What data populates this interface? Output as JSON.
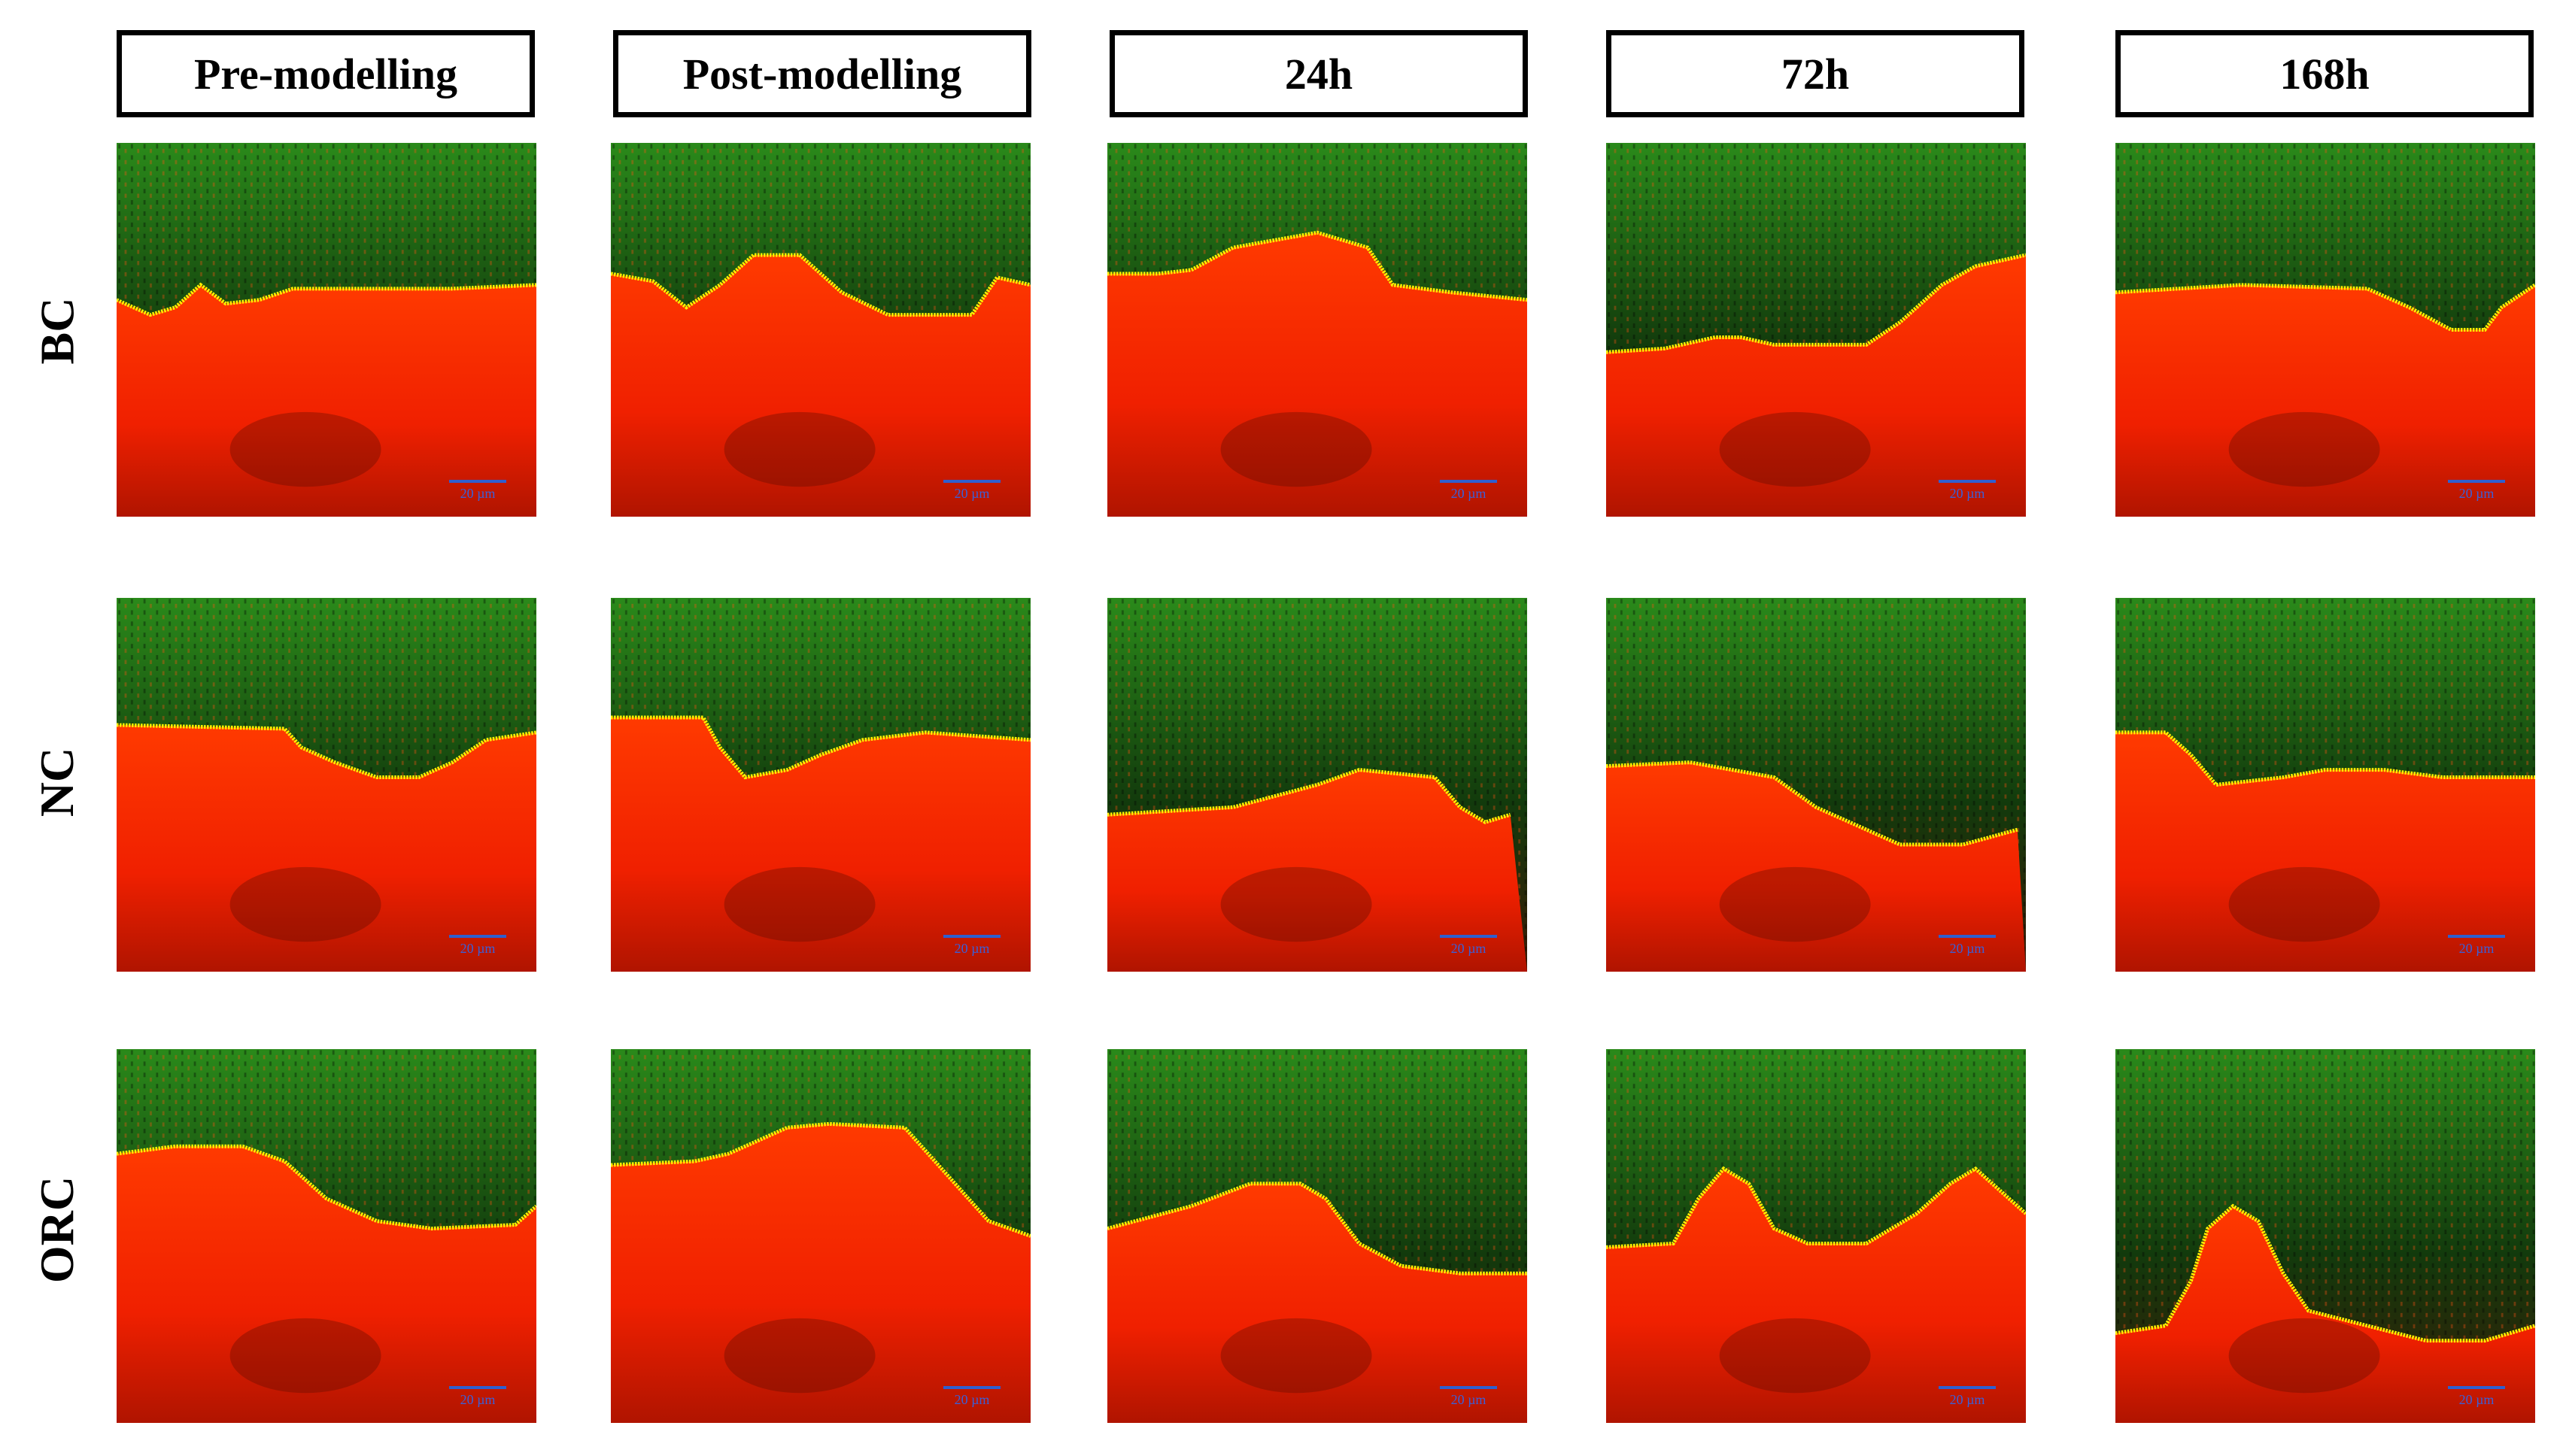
{
  "columns": [
    "Pre-modelling",
    "Post-modelling",
    "24h",
    "72h",
    "168h"
  ],
  "rows": [
    "BC",
    "NC",
    "ORC"
  ],
  "scale_bar_label": "20 µm",
  "colors": {
    "tissue": "#ff2200",
    "stain": "#1f8a1a",
    "boundary": "#ffee00",
    "scale": "#2f5fd0"
  }
}
